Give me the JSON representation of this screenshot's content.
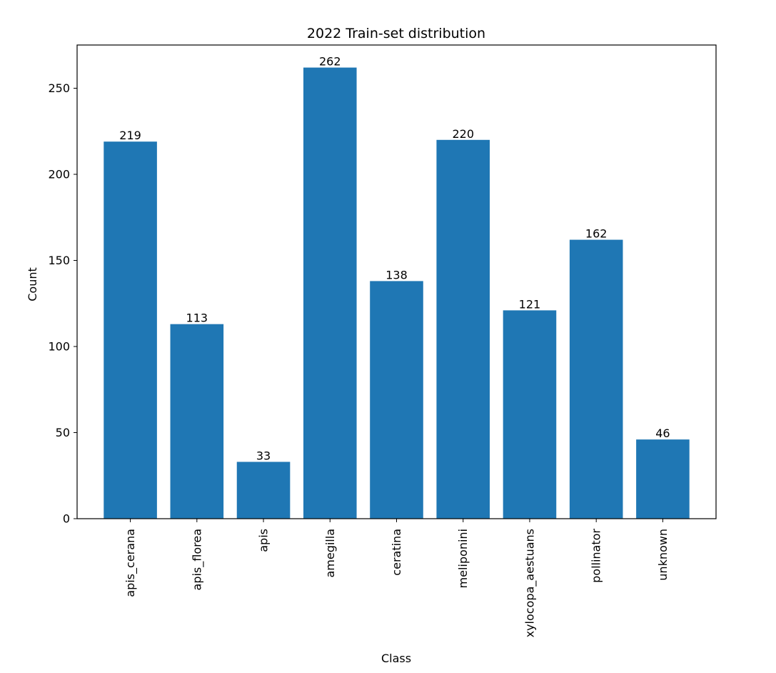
{
  "chart_data": {
    "type": "bar",
    "title": "2022 Train-set distribution",
    "xlabel": "Class",
    "ylabel": "Count",
    "categories": [
      "apis_cerana",
      "apis_florea",
      "apis",
      "amegilla",
      "ceratina",
      "meliponini",
      "xylocopa_aestuans",
      "pollinator",
      "unknown"
    ],
    "values": [
      219,
      113,
      33,
      262,
      138,
      220,
      121,
      162,
      46
    ],
    "ylim": [
      0,
      275.1
    ],
    "yticks": [
      0,
      50,
      100,
      150,
      200,
      250
    ],
    "bar_color": "#1f77b4",
    "grid": false,
    "legend": "none"
  }
}
